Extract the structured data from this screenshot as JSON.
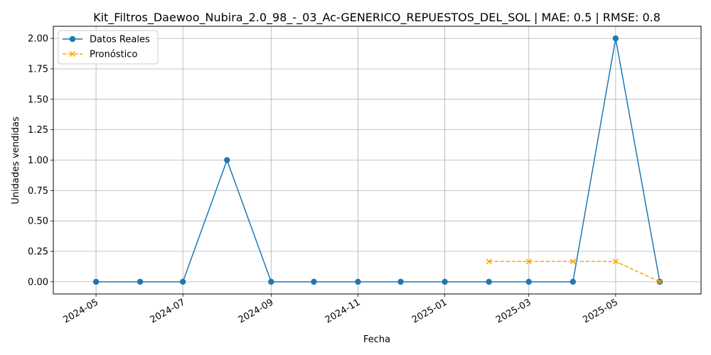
{
  "chart_data": {
    "type": "line",
    "title": "Kit_Filtros_Daewoo_Nubira_2.0_98_-_03_Ac-GENERICO_REPUESTOS_DEL_SOL | MAE: 0.5 | RMSE: 0.8",
    "xlabel": "Fecha",
    "ylabel": "Unidades vendidas",
    "ylim": [
      -0.1,
      2.1
    ],
    "xlim": [
      "2024-04-01",
      "2025-06-30"
    ],
    "grid": true,
    "legend_position": "top-left",
    "x_ticks": [
      "2024-05",
      "2024-07",
      "2024-09",
      "2024-11",
      "2025-01",
      "2025-03",
      "2025-05"
    ],
    "y_ticks": [
      "0.00",
      "0.25",
      "0.50",
      "0.75",
      "1.00",
      "1.25",
      "1.50",
      "1.75",
      "2.00"
    ],
    "series": [
      {
        "name": "Datos Reales",
        "color": "#1f77b4",
        "style": "solid",
        "marker": "circle",
        "x": [
          "2024-05-01",
          "2024-06-01",
          "2024-07-01",
          "2024-08-01",
          "2024-09-01",
          "2024-10-01",
          "2024-11-01",
          "2024-12-01",
          "2025-01-01",
          "2025-02-01",
          "2025-03-01",
          "2025-04-01",
          "2025-05-01",
          "2025-06-01"
        ],
        "y": [
          0,
          0,
          0,
          1,
          0,
          0,
          0,
          0,
          0,
          0,
          0,
          0,
          2,
          0
        ]
      },
      {
        "name": "Pronóstico",
        "color": "#ffa500",
        "style": "dashed",
        "marker": "x",
        "x": [
          "2025-02-01",
          "2025-03-01",
          "2025-04-01",
          "2025-05-01",
          "2025-06-01"
        ],
        "y": [
          0.1667,
          0.1667,
          0.1667,
          0.1667,
          0
        ]
      }
    ]
  }
}
